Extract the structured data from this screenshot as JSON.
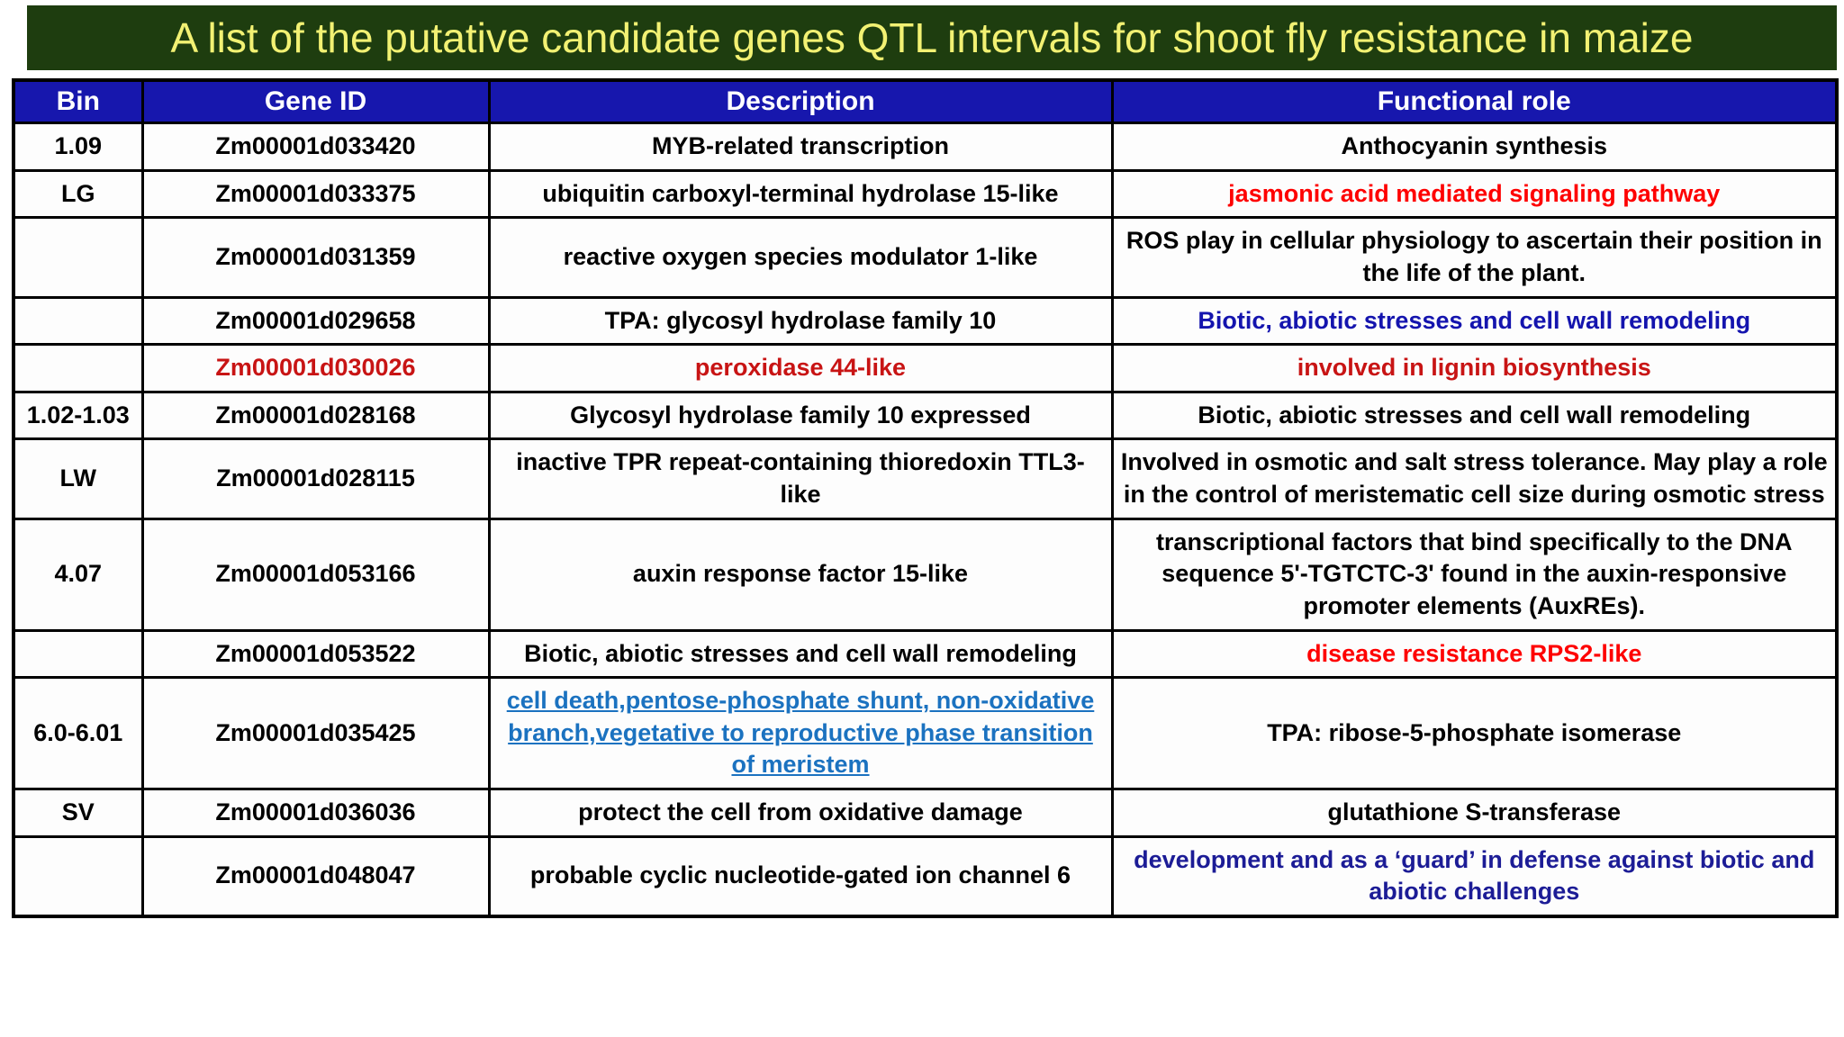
{
  "title": "A list of the putative candidate genes QTL intervals for shoot fly resistance in maize",
  "colors": {
    "title_bg": "#1e3d0f",
    "title_text": "#f2f173",
    "header_bg": "#1717ad",
    "header_text": "#ffffff",
    "bright_red": "#fe0000",
    "dark_red": "#c81414",
    "navy_blue": "#1414ae",
    "dark_navy": "#1c1c96",
    "link_blue": "#1b72c0",
    "black": "#000000"
  },
  "table": {
    "headers": {
      "bin": "Bin",
      "gene": "Gene ID",
      "desc": "Description",
      "role": "Functional role"
    },
    "rows": [
      {
        "bin": "1.09",
        "gene": "Zm00001d033420",
        "desc": "MYB-related transcription",
        "role": "Anthocyanin synthesis"
      },
      {
        "bin": "LG",
        "gene": "Zm00001d033375",
        "desc": "ubiquitin carboxyl-terminal hydrolase 15-like",
        "role": "jasmonic acid mediated signaling pathway",
        "role_color": "#fe0000"
      },
      {
        "bin": "",
        "gene": "Zm00001d031359",
        "desc": "reactive oxygen species modulator 1-like",
        "role": "ROS play in cellular physiology to ascertain their position in the life of the plant."
      },
      {
        "bin": "",
        "gene": "Zm00001d029658",
        "desc": "TPA: glycosyl hydrolase family 10",
        "role": "Biotic, abiotic stresses and cell wall remodeling",
        "role_color": "#1414ae"
      },
      {
        "bin": "",
        "gene": "Zm00001d030026",
        "gene_color": "#c81414",
        "desc": "peroxidase 44-like",
        "desc_color": "#c81414",
        "role": "involved in lignin biosynthesis",
        "role_color": "#c81414"
      },
      {
        "bin": "1.02-1.03",
        "gene": "Zm00001d028168",
        "desc": "Glycosyl hydrolase family 10 expressed",
        "role": "Biotic, abiotic stresses and cell wall remodeling"
      },
      {
        "bin": "LW",
        "gene": "Zm00001d028115",
        "desc": "inactive TPR repeat-containing thioredoxin TTL3-like",
        "role": "Involved in osmotic and salt stress tolerance. May play a role in the control of meristematic cell size during osmotic stress"
      },
      {
        "bin": "4.07",
        "gene": "Zm00001d053166",
        "desc": "auxin response factor 15-like",
        "role": "transcriptional factors that bind specifically to the DNA sequence 5'-TGTCTC-3' found in the auxin-responsive promoter elements (AuxREs)."
      },
      {
        "bin": "",
        "gene": "Zm00001d053522",
        "desc": "Biotic, abiotic stresses and cell wall remodeling",
        "role": "disease resistance RPS2-like",
        "role_color": "#fe0000"
      },
      {
        "bin": "6.0-6.01",
        "gene": "Zm00001d035425",
        "desc": "cell death,pentose-phosphate shunt, non-oxidative branch,vegetative to reproductive phase transition of meristem",
        "desc_color": "#1b72c0",
        "desc_decoration": "underline",
        "role": "TPA: ribose-5-phosphate isomerase"
      },
      {
        "bin": "SV",
        "gene": "Zm00001d036036",
        "desc": "protect the cell from oxidative damage",
        "role": "glutathione S-transferase"
      },
      {
        "bin": "",
        "gene": "Zm00001d048047",
        "desc": "probable cyclic nucleotide-gated ion channel 6",
        "role": "development and as a ‘guard’ in defense against biotic and abiotic challenges",
        "role_color": "#1c1c96"
      }
    ]
  }
}
